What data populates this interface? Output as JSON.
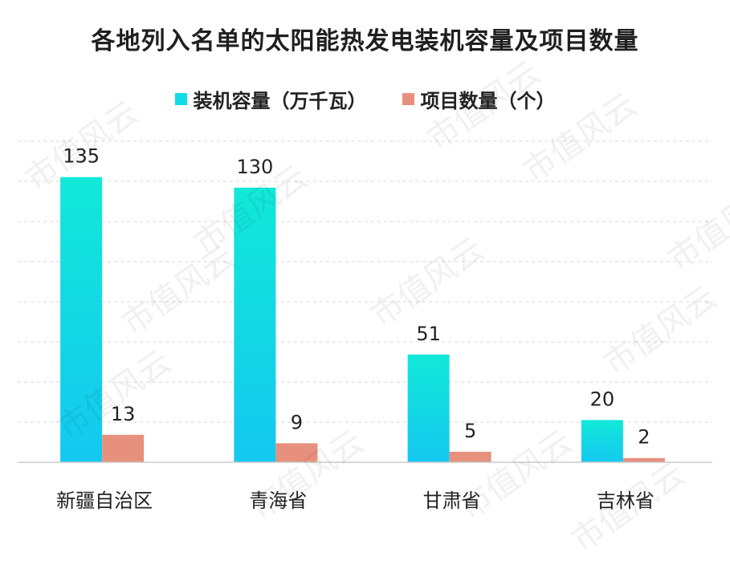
{
  "chart_data": {
    "type": "bar",
    "title": "各地列入名单的太阳能热发电装机容量及项目数量",
    "categories": [
      "新疆自治区",
      "青海省",
      "甘肃省",
      "吉林省"
    ],
    "series": [
      {
        "name": "装机容量（万千瓦）",
        "values": [
          135,
          130,
          51,
          20
        ]
      },
      {
        "name": "项目数量（个）",
        "values": [
          13,
          9,
          5,
          2
        ]
      }
    ],
    "ylim": [
      0,
      155
    ],
    "grid": true,
    "legend_position": "top-center"
  },
  "colors": {
    "series_0_top": "#12e8d8",
    "series_0_bottom": "#14c8f0",
    "series_1": "#e8907e",
    "gridline": "#d9d9d9",
    "axis": "#cccccc"
  },
  "watermark": {
    "text": "市值风云"
  }
}
